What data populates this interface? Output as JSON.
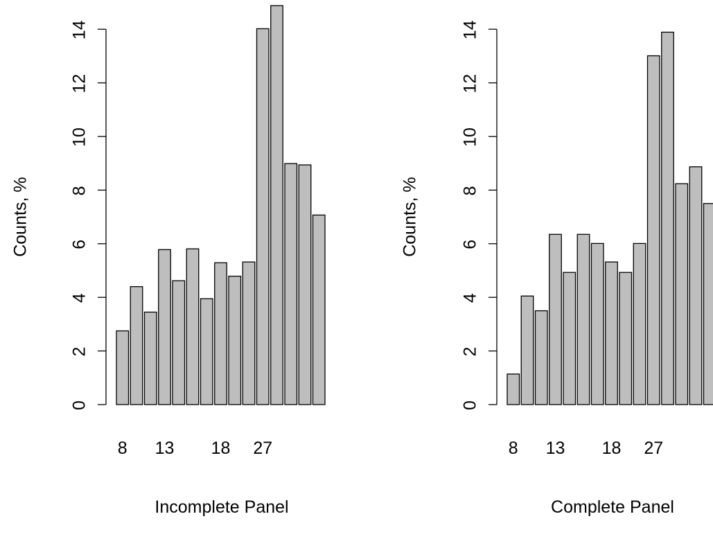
{
  "chart_data": [
    {
      "type": "bar",
      "title": "Incomplete Panel",
      "xlabel": "",
      "ylabel": "Counts, %",
      "ylim": [
        0,
        14.9
      ],
      "yticks": [
        0,
        2,
        4,
        6,
        8,
        10,
        12,
        14
      ],
      "categories": [
        "8",
        "",
        "",
        "13",
        "",
        "",
        "",
        "18",
        "",
        "",
        "27",
        "",
        "",
        "",
        ""
      ],
      "values": [
        2.75,
        4.4,
        3.45,
        5.78,
        4.62,
        5.81,
        3.95,
        5.29,
        4.79,
        5.32,
        14.02,
        14.88,
        8.99,
        8.94,
        7.07
      ],
      "bar_color": "#bebebe",
      "grid": false
    },
    {
      "type": "bar",
      "title": "Complete Panel",
      "xlabel": "",
      "ylabel": "Counts, %",
      "ylim": [
        0,
        14.9
      ],
      "yticks": [
        0,
        2,
        4,
        6,
        8,
        10,
        12,
        14
      ],
      "categories": [
        "8",
        "",
        "",
        "13",
        "",
        "",
        "",
        "18",
        "",
        "",
        "27",
        "",
        "",
        "",
        ""
      ],
      "values": [
        1.14,
        4.05,
        3.5,
        6.35,
        4.93,
        6.35,
        6.01,
        5.32,
        4.93,
        6.01,
        13.01,
        13.89,
        8.24,
        8.87,
        7.5
      ],
      "bar_color": "#bebebe",
      "grid": false
    }
  ]
}
